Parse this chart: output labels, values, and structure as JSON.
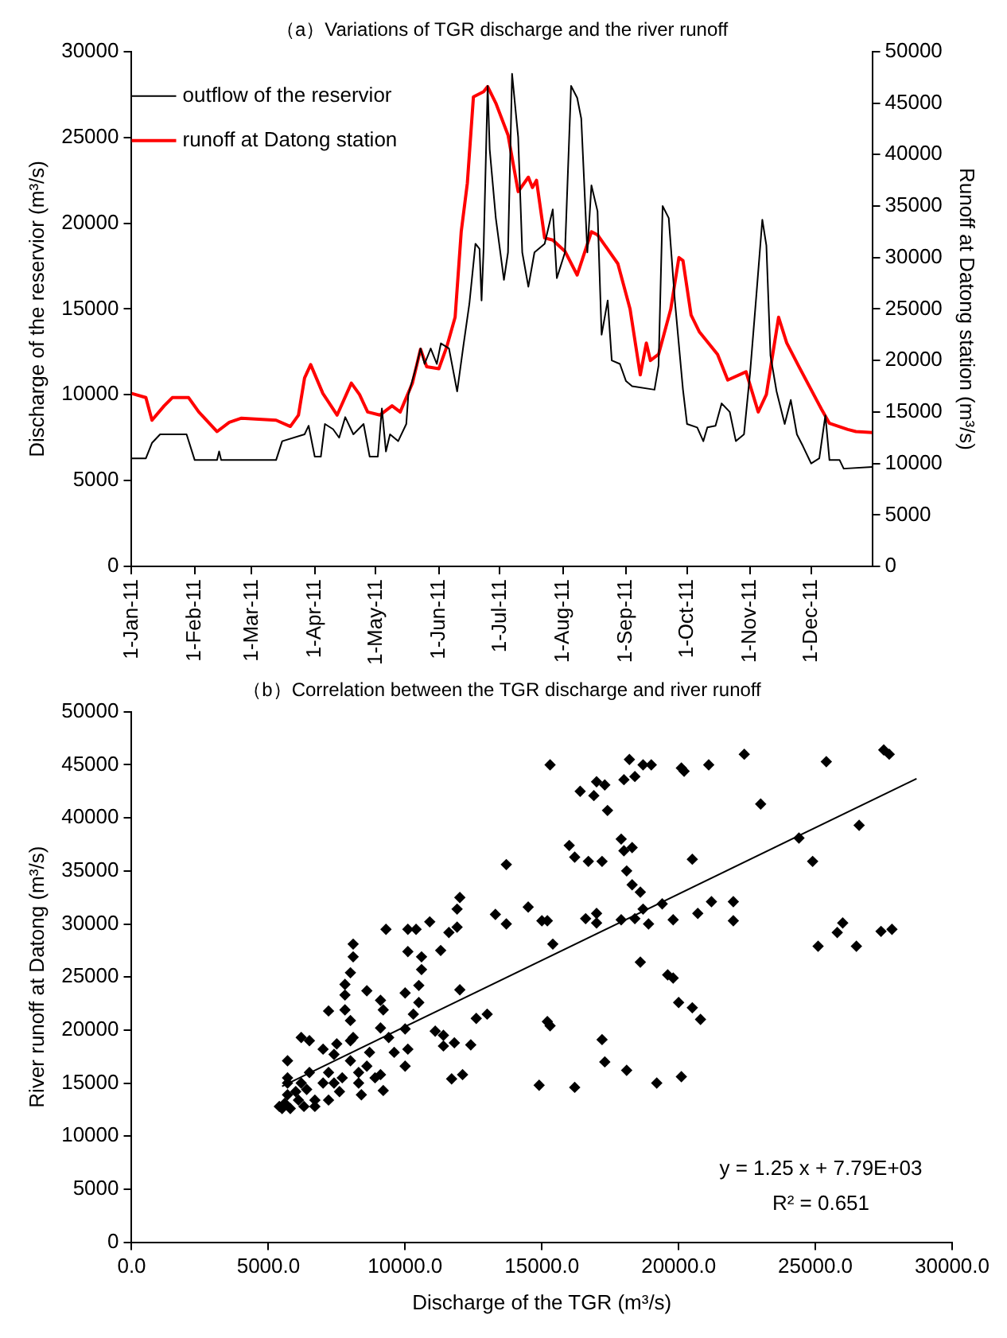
{
  "chart_data": [
    {
      "type": "line",
      "title": "（a）Variations of TGR discharge and the river runoff",
      "ylabel": "Discharge of the reservior (m³/s)",
      "y2label": "Runoff at Datong station (m³/s)",
      "legend": "top left",
      "grid": false,
      "xlim": [
        "2011-01-01",
        "2011-12-31"
      ],
      "xticks": [
        {
          "value": "2011-01-01",
          "label": "1-Jan-11"
        },
        {
          "value": "2011-02-01",
          "label": "1-Feb-11"
        },
        {
          "value": "2011-03-01",
          "label": "1-Mar-11"
        },
        {
          "value": "2011-04-01",
          "label": "1-Apr-11"
        },
        {
          "value": "2011-05-01",
          "label": "1-May-11"
        },
        {
          "value": "2011-06-01",
          "label": "1-Jun-11"
        },
        {
          "value": "2011-07-01",
          "label": "1-Jul-11"
        },
        {
          "value": "2011-08-01",
          "label": "1-Aug-11"
        },
        {
          "value": "2011-09-01",
          "label": "1-Sep-11"
        },
        {
          "value": "2011-10-01",
          "label": "1-Oct-11"
        },
        {
          "value": "2011-11-01",
          "label": "1-Nov-11"
        },
        {
          "value": "2011-12-01",
          "label": "1-Dec-11"
        }
      ],
      "ylim": [
        0,
        30000
      ],
      "yticks": [
        0,
        5000,
        10000,
        15000,
        20000,
        25000,
        30000
      ],
      "y2lim": [
        0,
        50000
      ],
      "y2ticks": [
        0,
        5000,
        10000,
        15000,
        20000,
        25000,
        30000,
        35000,
        40000,
        45000,
        50000
      ],
      "series": [
        {
          "name": "outflow of the reservior",
          "color": "#000000",
          "x": [
            "2011-01-01",
            "2011-01-08",
            "2011-01-11",
            "2011-01-15",
            "2011-01-28",
            "2011-02-01",
            "2011-02-12",
            "2011-02-13",
            "2011-02-14",
            "2011-03-13",
            "2011-03-16",
            "2011-03-27",
            "2011-03-29",
            "2011-04-01",
            "2011-04-04",
            "2011-04-06",
            "2011-04-10",
            "2011-04-13",
            "2011-04-16",
            "2011-04-20",
            "2011-04-25",
            "2011-04-28",
            "2011-05-02",
            "2011-05-04",
            "2011-05-06",
            "2011-05-08",
            "2011-05-12",
            "2011-05-16",
            "2011-05-17",
            "2011-05-21",
            "2011-05-23",
            "2011-05-25",
            "2011-05-28",
            "2011-05-31",
            "2011-06-02",
            "2011-06-06",
            "2011-06-10",
            "2011-06-13",
            "2011-06-16",
            "2011-06-19",
            "2011-06-21",
            "2011-06-22",
            "2011-06-23",
            "2011-06-25",
            "2011-06-26",
            "2011-06-29",
            "2011-07-03",
            "2011-07-05",
            "2011-07-07",
            "2011-07-10",
            "2011-07-12",
            "2011-07-15",
            "2011-07-18",
            "2011-07-23",
            "2011-07-27",
            "2011-07-29",
            "2011-08-02",
            "2011-08-05",
            "2011-08-08",
            "2011-08-10",
            "2011-08-13",
            "2011-08-15",
            "2011-08-18",
            "2011-08-20",
            "2011-08-23",
            "2011-08-25",
            "2011-08-29",
            "2011-09-01",
            "2011-09-04",
            "2011-09-15",
            "2011-09-17",
            "2011-09-19",
            "2011-09-22",
            "2011-09-25",
            "2011-09-29",
            "2011-10-01",
            "2011-10-06",
            "2011-10-09",
            "2011-10-11",
            "2011-10-15",
            "2011-10-18",
            "2011-10-22",
            "2011-10-25",
            "2011-10-29",
            "2011-11-01",
            "2011-11-04",
            "2011-11-07",
            "2011-11-09",
            "2011-11-11",
            "2011-11-14",
            "2011-11-18",
            "2011-11-21",
            "2011-11-24",
            "2011-11-27",
            "2011-12-01",
            "2011-12-05",
            "2011-12-08",
            "2011-12-10",
            "2011-12-15",
            "2011-12-17",
            "2011-12-31"
          ],
          "values": [
            6300,
            6300,
            7200,
            7700,
            7700,
            6200,
            6200,
            6700,
            6200,
            6200,
            7300,
            7700,
            8200,
            6400,
            6400,
            8300,
            8000,
            7500,
            8700,
            7700,
            8300,
            6400,
            6400,
            9200,
            6700,
            7700,
            7300,
            8300,
            10000,
            11700,
            12700,
            11800,
            12700,
            11800,
            13000,
            12700,
            10200,
            12800,
            15300,
            18800,
            18500,
            15500,
            18500,
            28000,
            24300,
            20300,
            16700,
            18300,
            28700,
            25000,
            18300,
            16300,
            18300,
            18800,
            20800,
            16800,
            18300,
            28000,
            27300,
            26100,
            18300,
            22200,
            20700,
            13500,
            15500,
            12000,
            11800,
            10800,
            10500,
            10300,
            11700,
            21000,
            20300,
            15500,
            10300,
            8300,
            8100,
            7300,
            8100,
            8200,
            9500,
            9000,
            7300,
            7700,
            11300,
            15700,
            20200,
            18700,
            12300,
            10200,
            8300,
            9700,
            7700,
            7000,
            6000,
            6300,
            8800,
            6200,
            6200,
            5700,
            5800
          ]
        },
        {
          "name": "runoff at Datong station",
          "color": "#ff0000",
          "axis": "y2",
          "x": [
            "2011-01-01",
            "2011-01-08",
            "2011-01-11",
            "2011-01-17",
            "2011-01-21",
            "2011-01-29",
            "2011-02-03",
            "2011-02-12",
            "2011-02-18",
            "2011-02-24",
            "2011-03-13",
            "2011-03-20",
            "2011-03-24",
            "2011-03-27",
            "2011-03-30",
            "2011-04-05",
            "2011-04-12",
            "2011-04-19",
            "2011-04-23",
            "2011-04-27",
            "2011-05-03",
            "2011-05-09",
            "2011-05-13",
            "2011-05-19",
            "2011-05-23",
            "2011-05-26",
            "2011-06-01",
            "2011-06-05",
            "2011-06-09",
            "2011-06-12",
            "2011-06-15",
            "2011-06-18",
            "2011-06-23",
            "2011-06-25",
            "2011-06-29",
            "2011-07-05",
            "2011-07-10",
            "2011-07-15",
            "2011-07-17",
            "2011-07-19",
            "2011-07-23",
            "2011-07-27",
            "2011-08-02",
            "2011-08-08",
            "2011-08-15",
            "2011-08-18",
            "2011-08-28",
            "2011-09-03",
            "2011-09-08",
            "2011-09-11",
            "2011-09-13",
            "2011-09-17",
            "2011-09-23",
            "2011-09-27",
            "2011-09-29",
            "2011-10-03",
            "2011-10-07",
            "2011-10-16",
            "2011-10-21",
            "2011-10-30",
            "2011-11-05",
            "2011-11-09",
            "2011-11-15",
            "2011-11-19",
            "2011-11-25",
            "2011-12-06",
            "2011-12-10",
            "2011-12-19",
            "2011-12-23",
            "2011-12-31"
          ],
          "values": [
            16800,
            16400,
            14200,
            15600,
            16400,
            16400,
            15000,
            13100,
            14000,
            14400,
            14200,
            13600,
            14700,
            18300,
            19600,
            16800,
            14700,
            17800,
            16700,
            15000,
            14700,
            15600,
            15000,
            17800,
            21100,
            19400,
            19200,
            21400,
            24200,
            32500,
            37200,
            45600,
            46100,
            46600,
            45000,
            41900,
            36400,
            37800,
            36800,
            37500,
            31900,
            31700,
            30600,
            28300,
            32500,
            32200,
            29400,
            25000,
            18600,
            21700,
            20000,
            20600,
            25000,
            30000,
            29700,
            24400,
            22800,
            20600,
            18100,
            18900,
            15000,
            16700,
            24200,
            21700,
            19400,
            15300,
            13900,
            13300,
            13100,
            13000
          ]
        }
      ]
    },
    {
      "type": "scatter",
      "title": "（b）Correlation between the TGR discharge and river runoff",
      "xlabel": "Discharge of the TGR (m³/s)",
      "ylabel": "River runoff at Datong (m³/s)",
      "grid": false,
      "xlim": [
        0,
        30000
      ],
      "xticks": [
        {
          "value": 0,
          "label": "0.0"
        },
        {
          "value": 5000,
          "label": "5000.0"
        },
        {
          "value": 10000,
          "label": "10000.0"
        },
        {
          "value": 15000,
          "label": "15000.0"
        },
        {
          "value": 20000,
          "label": "20000.0"
        },
        {
          "value": 25000,
          "label": "25000.0"
        },
        {
          "value": 30000,
          "label": "30000.0"
        }
      ],
      "ylim": [
        0,
        50000
      ],
      "yticks": [
        0,
        5000,
        10000,
        15000,
        20000,
        25000,
        30000,
        35000,
        40000,
        45000,
        50000
      ],
      "annotations": [
        "y = 1.25 x + 7.79E+03",
        "R² = 0.651"
      ],
      "series": [
        {
          "color": "#000000",
          "marker": "diamond",
          "x": [
            15300,
            16400,
            16900,
            17000,
            17300,
            17400,
            18000,
            18200,
            18400,
            18700,
            19000,
            20100,
            20200,
            21100,
            22400,
            23000,
            25400,
            26600,
            27500,
            27700,
            24400,
            24900,
            16000,
            16200,
            16700,
            17200,
            17900,
            18000,
            18300,
            18100,
            18300,
            18600,
            20500,
            13700,
            14500,
            13300,
            13700,
            15000,
            15200,
            15400,
            16600,
            17000,
            17000,
            17900,
            18400,
            18700,
            18900,
            19400,
            19800,
            20700,
            21200,
            22000,
            22000,
            25100,
            26000,
            25800,
            26500,
            27400,
            27800,
            18600,
            19600,
            19800,
            20000,
            20500,
            20800,
            15200,
            15300,
            17200,
            17300,
            18100,
            19200,
            20100,
            14900,
            16200,
            12000,
            11900,
            11900,
            11600,
            10900,
            10100,
            10400,
            9300,
            11300,
            10100,
            10600,
            10600,
            10500,
            10000,
            12000,
            8100,
            8100,
            8000,
            7800,
            7800,
            8600,
            9100,
            9200,
            7200,
            7800,
            8000,
            10500,
            10300,
            10000,
            10100,
            10000,
            9100,
            9400,
            8100,
            7500,
            11400,
            11400,
            11800,
            12400,
            12600,
            13000,
            11700,
            12100,
            11100,
            9100,
            9200,
            9600,
            8600,
            5400,
            5600,
            5700,
            5700,
            5700,
            5700,
            5800,
            6100,
            6200,
            6200,
            6400,
            6500,
            6700,
            7000,
            7000,
            7200,
            7200,
            7400,
            7400,
            7700,
            8000,
            8000,
            8300,
            8400,
            8300,
            6500,
            6000,
            5500,
            6700,
            6300,
            7600,
            8700,
            8900
          ],
          "values": [
            45000,
            42500,
            42100,
            43400,
            43100,
            40700,
            43600,
            45500,
            43900,
            45000,
            45000,
            44700,
            44400,
            45000,
            46000,
            41300,
            45300,
            39300,
            46400,
            46000,
            38100,
            35900,
            37400,
            36300,
            35900,
            35900,
            38000,
            36900,
            37200,
            35000,
            33700,
            33000,
            36100,
            35600,
            31600,
            30900,
            30000,
            30300,
            30300,
            28100,
            30500,
            31000,
            30100,
            30400,
            30500,
            31400,
            30000,
            31900,
            30400,
            31000,
            32100,
            32100,
            30300,
            27900,
            30100,
            29200,
            27900,
            29300,
            29500,
            26400,
            25200,
            24900,
            22600,
            22100,
            21000,
            20800,
            20400,
            19100,
            17000,
            16200,
            15000,
            15600,
            14800,
            14600,
            32500,
            31400,
            29700,
            29200,
            30200,
            29500,
            29500,
            29500,
            27500,
            27400,
            26900,
            25700,
            24200,
            23500,
            23800,
            28100,
            26900,
            25400,
            24300,
            23300,
            23700,
            22800,
            21900,
            21800,
            21900,
            20900,
            22600,
            21500,
            20100,
            18200,
            16600,
            20200,
            19300,
            19300,
            18700,
            19500,
            18500,
            18800,
            18600,
            21100,
            21500,
            15400,
            15800,
            19900,
            15800,
            14300,
            17900,
            16600,
            12800,
            13100,
            13900,
            15000,
            17100,
            15500,
            12600,
            13400,
            15000,
            19300,
            14400,
            16000,
            13400,
            15000,
            18200,
            16000,
            13400,
            15000,
            17700,
            15500,
            17100,
            19000,
            15000,
            13900,
            16000,
            19000,
            14200,
            12600,
            12800,
            12800,
            14200,
            17900,
            15500
          ]
        },
        {
          "type": "line",
          "color": "#000000",
          "x": [
            5500,
            28700
          ],
          "values": [
            14700,
            43700
          ]
        }
      ]
    }
  ]
}
